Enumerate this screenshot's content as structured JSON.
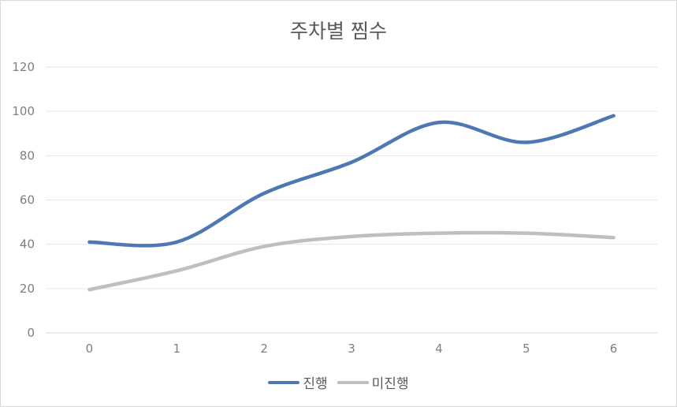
{
  "chart_data": {
    "type": "line",
    "title": "주차별 찜수",
    "xlabel": "",
    "ylabel": "",
    "x": [
      0,
      1,
      2,
      3,
      4,
      5,
      6
    ],
    "ylim": [
      0,
      120
    ],
    "yticks": [
      0,
      20,
      40,
      60,
      80,
      100,
      120
    ],
    "grid": "horizontal",
    "smooth": true,
    "legend_position": "bottom",
    "series": [
      {
        "name": "진행",
        "color": "#4e78b4",
        "values": [
          41,
          41,
          63,
          77,
          95,
          86,
          98
        ]
      },
      {
        "name": "미진행",
        "color": "#bfbfbf",
        "values": [
          19.5,
          28,
          39,
          43.5,
          45,
          45,
          43
        ]
      }
    ]
  }
}
